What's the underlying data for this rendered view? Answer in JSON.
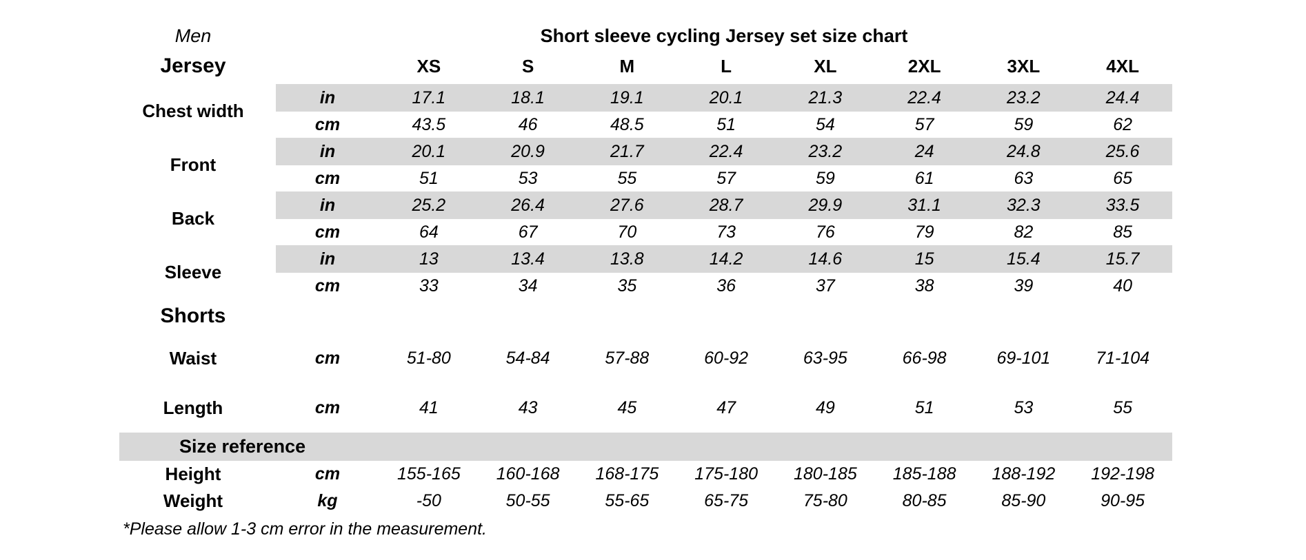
{
  "page": {
    "background": "#ffffff",
    "band_color": "#d8d8d8",
    "text_color": "#000000"
  },
  "header": {
    "gender": "Men",
    "title": "Short sleeve cycling Jersey set size chart",
    "jersey_section": "Jersey",
    "sizes": [
      "XS",
      "S",
      "M",
      "L",
      "XL",
      "2XL",
      "3XL",
      "4XL"
    ]
  },
  "jersey_rows": [
    {
      "label": "Chest width",
      "in": {
        "unit": "in",
        "values": [
          "17.1",
          "18.1",
          "19.1",
          "20.1",
          "21.3",
          "22.4",
          "23.2",
          "24.4"
        ]
      },
      "cm": {
        "unit": "cm",
        "values": [
          "43.5",
          "46",
          "48.5",
          "51",
          "54",
          "57",
          "59",
          "62"
        ]
      }
    },
    {
      "label": "Front",
      "in": {
        "unit": "in",
        "values": [
          "20.1",
          "20.9",
          "21.7",
          "22.4",
          "23.2",
          "24",
          "24.8",
          "25.6"
        ]
      },
      "cm": {
        "unit": "cm",
        "values": [
          "51",
          "53",
          "55",
          "57",
          "59",
          "61",
          "63",
          "65"
        ]
      }
    },
    {
      "label": "Back",
      "in": {
        "unit": "in",
        "values": [
          "25.2",
          "26.4",
          "27.6",
          "28.7",
          "29.9",
          "31.1",
          "32.3",
          "33.5"
        ]
      },
      "cm": {
        "unit": "cm",
        "values": [
          "64",
          "67",
          "70",
          "73",
          "76",
          "79",
          "82",
          "85"
        ]
      }
    },
    {
      "label": "Sleeve",
      "in": {
        "unit": "in",
        "values": [
          "13",
          "13.4",
          "13.8",
          "14.2",
          "14.6",
          "15",
          "15.4",
          "15.7"
        ]
      },
      "cm": {
        "unit": "cm",
        "values": [
          "33",
          "34",
          "35",
          "36",
          "37",
          "38",
          "39",
          "40"
        ]
      }
    }
  ],
  "shorts": {
    "section": "Shorts",
    "rows": [
      {
        "label": "Waist",
        "unit": "cm",
        "values": [
          "51-80",
          "54-84",
          "57-88",
          "60-92",
          "63-95",
          "66-98",
          "69-101",
          "71-104"
        ]
      },
      {
        "label": "Length",
        "unit": "cm",
        "values": [
          "41",
          "43",
          "45",
          "47",
          "49",
          "51",
          "53",
          "55"
        ]
      }
    ]
  },
  "size_reference": {
    "section": "Size reference",
    "rows": [
      {
        "label": "Height",
        "unit": "cm",
        "values": [
          "155-165",
          "160-168",
          "168-175",
          "175-180",
          "180-185",
          "185-188",
          "188-192",
          "192-198"
        ]
      },
      {
        "label": "Weight",
        "unit": "kg",
        "values": [
          "-50",
          "50-55",
          "55-65",
          "65-75",
          "75-80",
          "80-85",
          "85-90",
          "90-95"
        ]
      }
    ]
  },
  "footnote": "*Please allow 1-3 cm error in the measurement."
}
